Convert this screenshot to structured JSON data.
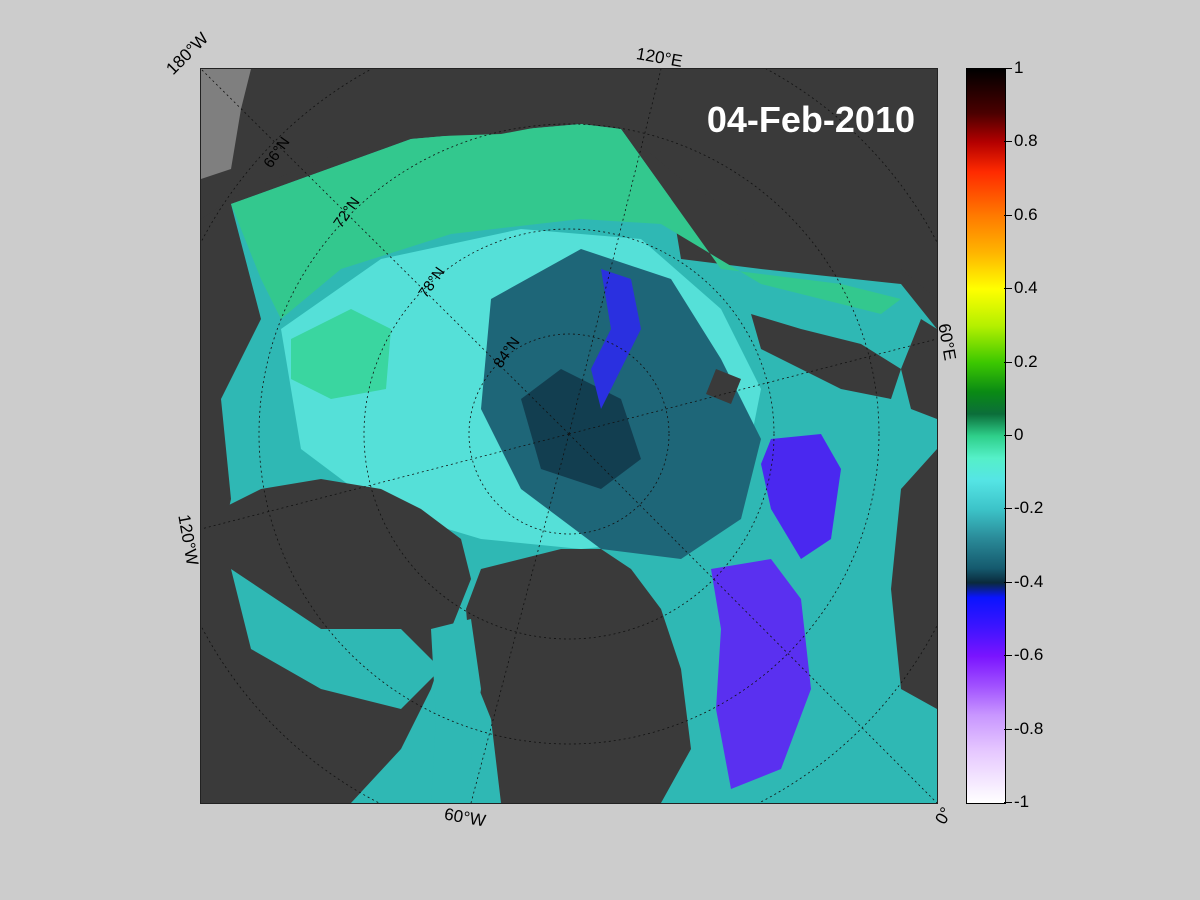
{
  "map": {
    "date": "04-Feb-2010",
    "longitude_labels": {
      "lon_180w": "180°W",
      "lon_120e": "120°E",
      "lon_60e": "60°E",
      "lon_0": "0°",
      "lon_60w": "60°W",
      "lon_120w": "120°W"
    },
    "latitude_labels": [
      "66°N",
      "72°N",
      "78°N",
      "84°N"
    ],
    "colors": {
      "land": "#3a3a3a",
      "coastal_grey": "#7f7f7f",
      "background": "#cccccc"
    }
  },
  "colorbar": {
    "ticks": [
      "1",
      "0.8",
      "0.6",
      "0.4",
      "0.2",
      "0",
      "-0.2",
      "-0.4",
      "-0.6",
      "-0.8",
      "-1"
    ],
    "max": 1,
    "min": -1
  }
}
